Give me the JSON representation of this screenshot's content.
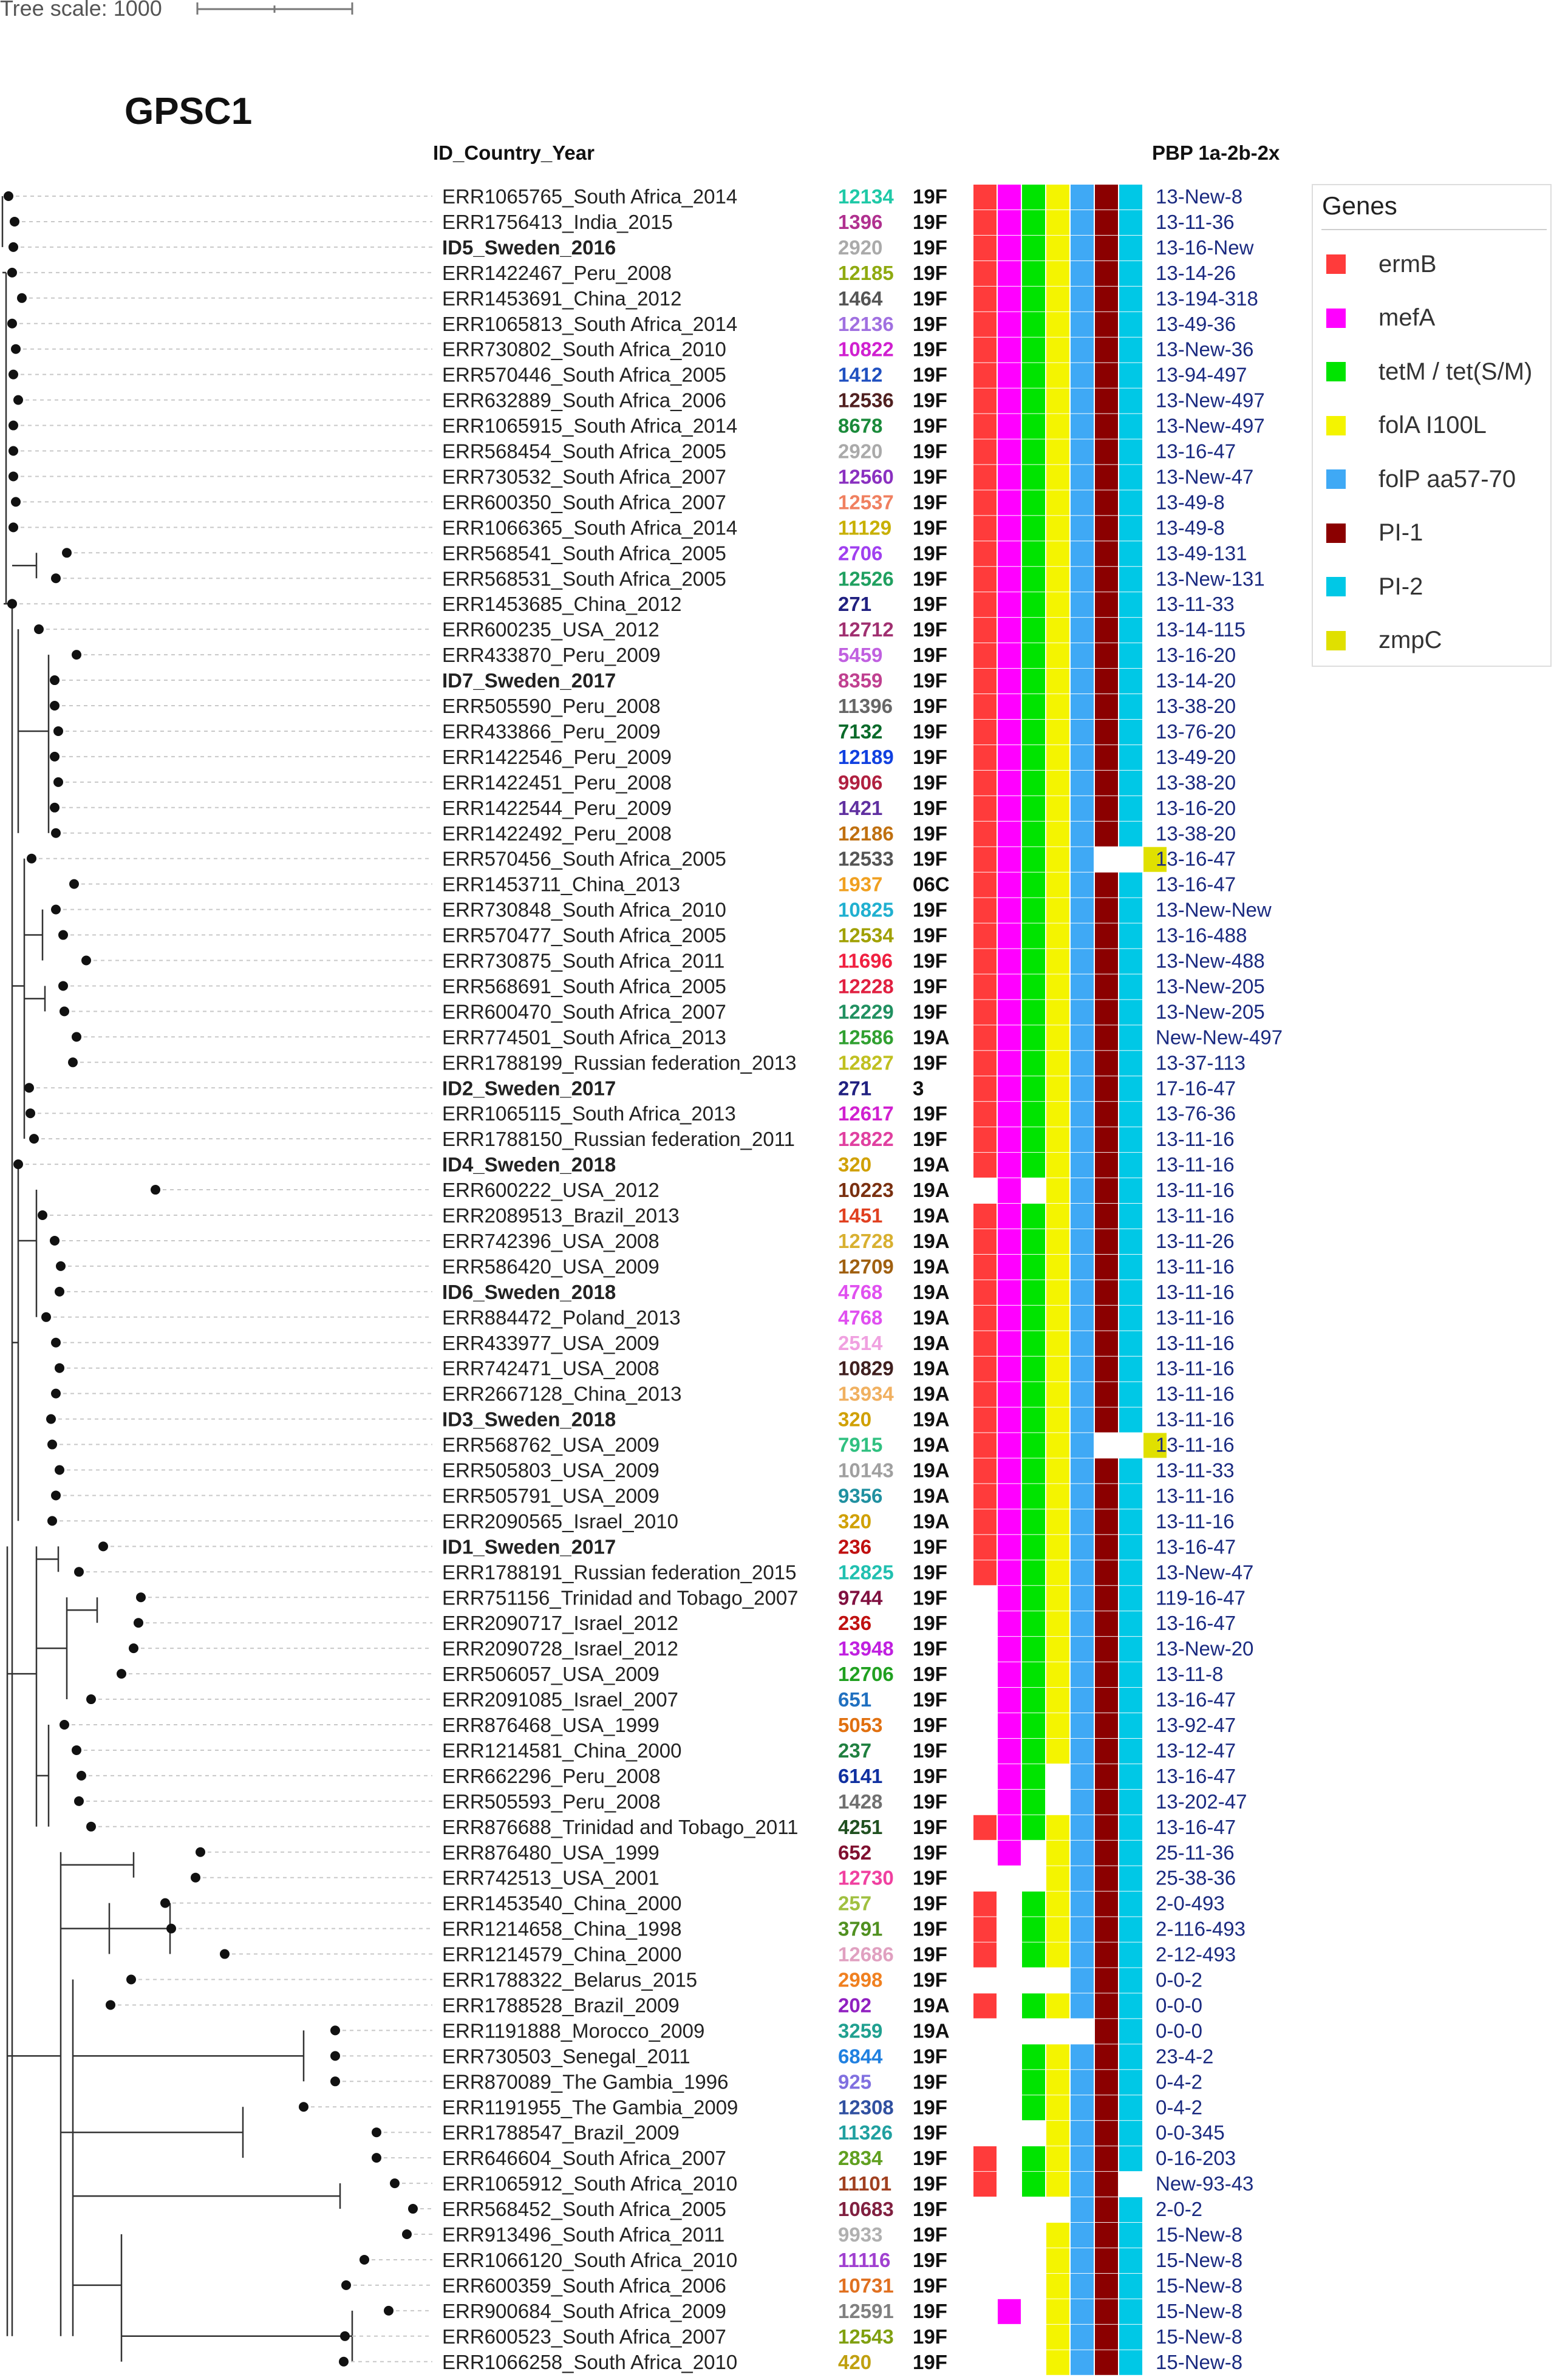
{
  "header": {
    "scale_label": "Tree scale: 1000",
    "title": "GPSC1",
    "col_id": "ID_Country_Year",
    "col_pbp": "PBP 1a-2b-2x"
  },
  "legend": {
    "title": "Genes",
    "items": [
      {
        "label": "ermB",
        "color": "#ff3b3b"
      },
      {
        "label": "mefA",
        "color": "#ff00ff"
      },
      {
        "label": "tetM / tet(S/M)",
        "color": "#00e400"
      },
      {
        "label": "folA I100L",
        "color": "#f4f400"
      },
      {
        "label": "folP aa57-70",
        "color": "#3fa9f5"
      },
      {
        "label": "PI-1",
        "color": "#8b0000"
      },
      {
        "label": "PI-2",
        "color": "#00c8e6"
      },
      {
        "label": "zmpC",
        "color": "#e0e000"
      }
    ]
  },
  "rows": [
    {
      "id": "ERR1065765_South Africa_2014",
      "st": "12134",
      "stc": "#1fc9a7",
      "sero": "19F",
      "genes": "11111110",
      "pbp": "13-New-8"
    },
    {
      "id": "ERR1756413_India_2015",
      "st": "1396",
      "stc": "#b0308f",
      "sero": "19F",
      "genes": "11111110",
      "pbp": "13-11-36"
    },
    {
      "id": "ID5_Sweden_2016",
      "bold": true,
      "st": "2920",
      "stc": "#aaaaaa",
      "sero": "19F",
      "genes": "11111110",
      "pbp": "13-16-New"
    },
    {
      "id": "ERR1422467_Peru_2008",
      "st": "12185",
      "stc": "#8faa10",
      "sero": "19F",
      "genes": "11111110",
      "pbp": "13-14-26"
    },
    {
      "id": "ERR1453691_China_2012",
      "st": "1464",
      "stc": "#555555",
      "sero": "19F",
      "genes": "11111110",
      "pbp": "13-194-318"
    },
    {
      "id": "ERR1065813_South Africa_2014",
      "st": "12136",
      "stc": "#a070e0",
      "sero": "19F",
      "genes": "11111110",
      "pbp": "13-49-36"
    },
    {
      "id": "ERR730802_South Africa_2010",
      "st": "10822",
      "stc": "#d020d0",
      "sero": "19F",
      "genes": "11111110",
      "pbp": "13-New-36"
    },
    {
      "id": "ERR570446_South Africa_2005",
      "st": "1412",
      "stc": "#2050c0",
      "sero": "19F",
      "genes": "11111110",
      "pbp": "13-94-497"
    },
    {
      "id": "ERR632889_South Africa_2006",
      "st": "12536",
      "stc": "#502020",
      "sero": "19F",
      "genes": "11111110",
      "pbp": "13-New-497"
    },
    {
      "id": "ERR1065915_South Africa_2014",
      "st": "8678",
      "stc": "#1a8a3a",
      "sero": "19F",
      "genes": "11111110",
      "pbp": "13-New-497"
    },
    {
      "id": "ERR568454_South Africa_2005",
      "st": "2920",
      "stc": "#aaaaaa",
      "sero": "19F",
      "genes": "11111110",
      "pbp": "13-16-47"
    },
    {
      "id": "ERR730532_South Africa_2007",
      "st": "12560",
      "stc": "#8a30c0",
      "sero": "19F",
      "genes": "11111110",
      "pbp": "13-New-47"
    },
    {
      "id": "ERR600350_South Africa_2007",
      "st": "12537",
      "stc": "#f08060",
      "sero": "19F",
      "genes": "11111110",
      "pbp": "13-49-8"
    },
    {
      "id": "ERR1066365_South Africa_2014",
      "st": "11129",
      "stc": "#c8b000",
      "sero": "19F",
      "genes": "11111110",
      "pbp": "13-49-8"
    },
    {
      "id": "ERR568541_South Africa_2005",
      "st": "2706",
      "stc": "#a040f0",
      "sero": "19F",
      "genes": "11111110",
      "pbp": "13-49-131"
    },
    {
      "id": "ERR568531_South Africa_2005",
      "st": "12526",
      "stc": "#20a060",
      "sero": "19F",
      "genes": "11111110",
      "pbp": "13-New-131"
    },
    {
      "id": "ERR1453685_China_2012",
      "st": "271",
      "stc": "#202080",
      "sero": "19F",
      "genes": "11111110",
      "pbp": "13-11-33"
    },
    {
      "id": "ERR600235_USA_2012",
      "st": "12712",
      "stc": "#a03070",
      "sero": "19F",
      "genes": "11111110",
      "pbp": "13-14-115"
    },
    {
      "id": "ERR433870_Peru_2009",
      "st": "5459",
      "stc": "#c060e0",
      "sero": "19F",
      "genes": "11111110",
      "pbp": "13-16-20"
    },
    {
      "id": "ID7_Sweden_2017",
      "bold": true,
      "st": "8359",
      "stc": "#c04090",
      "sero": "19F",
      "genes": "11111110",
      "pbp": "13-14-20"
    },
    {
      "id": "ERR505590_Peru_2008",
      "st": "11396",
      "stc": "#666666",
      "sero": "19F",
      "genes": "11111110",
      "pbp": "13-38-20"
    },
    {
      "id": "ERR433866_Peru_2009",
      "st": "7132",
      "stc": "#0a6a2a",
      "sero": "19F",
      "genes": "11111110",
      "pbp": "13-76-20"
    },
    {
      "id": "ERR1422546_Peru_2009",
      "st": "12189",
      "stc": "#1040e0",
      "sero": "19F",
      "genes": "11111110",
      "pbp": "13-49-20"
    },
    {
      "id": "ERR1422451_Peru_2008",
      "st": "9906",
      "stc": "#b02040",
      "sero": "19F",
      "genes": "11111110",
      "pbp": "13-38-20"
    },
    {
      "id": "ERR1422544_Peru_2009",
      "st": "1421",
      "stc": "#6030a0",
      "sero": "19F",
      "genes": "11111110",
      "pbp": "13-16-20"
    },
    {
      "id": "ERR1422492_Peru_2008",
      "st": "12186",
      "stc": "#c07010",
      "sero": "19F",
      "genes": "11111110",
      "pbp": "13-38-20"
    },
    {
      "id": "ERR570456_South Africa_2005",
      "st": "12533",
      "stc": "#555555",
      "sero": "19F",
      "genes": "11111001",
      "pbp": "13-16-47"
    },
    {
      "id": "ERR1453711_China_2013",
      "st": "1937",
      "stc": "#f0a020",
      "sero": "06C",
      "genes": "11111110",
      "pbp": "13-16-47"
    },
    {
      "id": "ERR730848_South Africa_2010",
      "st": "10825",
      "stc": "#20b0d0",
      "sero": "19F",
      "genes": "11111110",
      "pbp": "13-New-New"
    },
    {
      "id": "ERR570477_South Africa_2005",
      "st": "12534",
      "stc": "#a0a000",
      "sero": "19F",
      "genes": "11111110",
      "pbp": "13-16-488"
    },
    {
      "id": "ERR730875_South Africa_2011",
      "st": "11696",
      "stc": "#f02040",
      "sero": "19F",
      "genes": "11111110",
      "pbp": "13-New-488"
    },
    {
      "id": "ERR568691_South Africa_2005",
      "st": "12228",
      "stc": "#e02040",
      "sero": "19F",
      "genes": "11111110",
      "pbp": "13-New-205"
    },
    {
      "id": "ERR600470_South Africa_2007",
      "st": "12229",
      "stc": "#209060",
      "sero": "19F",
      "genes": "11111110",
      "pbp": "13-New-205"
    },
    {
      "id": "ERR774501_South Africa_2013",
      "st": "12586",
      "stc": "#30a030",
      "sero": "19A",
      "genes": "11111110",
      "pbp": "New-New-497"
    },
    {
      "id": "ERR1788199_Russian federation_2013",
      "st": "12827",
      "stc": "#c0c020",
      "sero": "19F",
      "genes": "11111110",
      "pbp": "13-37-113"
    },
    {
      "id": "ID2_Sweden_2017",
      "bold": true,
      "st": "271",
      "stc": "#202080",
      "sero": "3",
      "genes": "11111110",
      "pbp": "17-16-47"
    },
    {
      "id": "ERR1065115_South Africa_2013",
      "st": "12617",
      "stc": "#d020d0",
      "sero": "19F",
      "genes": "11111110",
      "pbp": "13-76-36"
    },
    {
      "id": "ERR1788150_Russian federation_2011",
      "st": "12822",
      "stc": "#e040a0",
      "sero": "19F",
      "genes": "11111110",
      "pbp": "13-11-16"
    },
    {
      "id": "ID4_Sweden_2018",
      "bold": true,
      "st": "320",
      "stc": "#d0a000",
      "sero": "19A",
      "genes": "11111110",
      "pbp": "13-11-16"
    },
    {
      "id": "ERR600222_USA_2012",
      "st": "10223",
      "stc": "#7a3010",
      "sero": "19A",
      "genes": "01011110",
      "pbp": "13-11-16"
    },
    {
      "id": "ERR2089513_Brazil_2013",
      "st": "1451",
      "stc": "#e04020",
      "sero": "19A",
      "genes": "11111110",
      "pbp": "13-11-16"
    },
    {
      "id": "ERR742396_USA_2008",
      "st": "12728",
      "stc": "#d8b030",
      "sero": "19A",
      "genes": "11111110",
      "pbp": "13-11-26"
    },
    {
      "id": "ERR586420_USA_2009",
      "st": "12709",
      "stc": "#a06010",
      "sero": "19A",
      "genes": "11111110",
      "pbp": "13-11-16"
    },
    {
      "id": "ID6_Sweden_2018",
      "bold": true,
      "st": "4768",
      "stc": "#e050f0",
      "sero": "19A",
      "genes": "11111110",
      "pbp": "13-11-16"
    },
    {
      "id": "ERR884472_Poland_2013",
      "st": "4768",
      "stc": "#e050f0",
      "sero": "19A",
      "genes": "11111110",
      "pbp": "13-11-16"
    },
    {
      "id": "ERR433977_USA_2009",
      "st": "2514",
      "stc": "#f0a0e0",
      "sero": "19A",
      "genes": "11111110",
      "pbp": "13-11-16"
    },
    {
      "id": "ERR742471_USA_2008",
      "st": "10829",
      "stc": "#402020",
      "sero": "19A",
      "genes": "11111110",
      "pbp": "13-11-16"
    },
    {
      "id": "ERR2667128_China_2013",
      "st": "13934",
      "stc": "#f0b060",
      "sero": "19A",
      "genes": "11111110",
      "pbp": "13-11-16"
    },
    {
      "id": "ID3_Sweden_2018",
      "bold": true,
      "st": "320",
      "stc": "#d0a000",
      "sero": "19A",
      "genes": "11111110",
      "pbp": "13-11-16"
    },
    {
      "id": "ERR568762_USA_2009",
      "st": "7915",
      "stc": "#30c080",
      "sero": "19A",
      "genes": "11111001",
      "pbp": "13-11-16"
    },
    {
      "id": "ERR505803_USA_2009",
      "st": "10143",
      "stc": "#a0a0a0",
      "sero": "19A",
      "genes": "11111110",
      "pbp": "13-11-33"
    },
    {
      "id": "ERR505791_USA_2009",
      "st": "9356",
      "stc": "#2090a0",
      "sero": "19A",
      "genes": "11111110",
      "pbp": "13-11-16"
    },
    {
      "id": "ERR2090565_Israel_2010",
      "st": "320",
      "stc": "#d0a000",
      "sero": "19A",
      "genes": "11111110",
      "pbp": "13-11-16"
    },
    {
      "id": "ID1_Sweden_2017",
      "bold": true,
      "st": "236",
      "stc": "#c01010",
      "sero": "19F",
      "genes": "11111110",
      "pbp": "13-16-47"
    },
    {
      "id": "ERR1788191_Russian federation_2015",
      "st": "12825",
      "stc": "#20c0b0",
      "sero": "19F",
      "genes": "11111110",
      "pbp": "13-New-47"
    },
    {
      "id": "ERR751156_Trinidad and Tobago_2007",
      "st": "9744",
      "stc": "#801040",
      "sero": "19F",
      "genes": "01111110",
      "pbp": "119-16-47"
    },
    {
      "id": "ERR2090717_Israel_2012",
      "st": "236",
      "stc": "#c01010",
      "sero": "19F",
      "genes": "01111110",
      "pbp": "13-16-47"
    },
    {
      "id": "ERR2090728_Israel_2012",
      "st": "13948",
      "stc": "#c020e0",
      "sero": "19F",
      "genes": "01111110",
      "pbp": "13-New-20"
    },
    {
      "id": "ERR506057_USA_2009",
      "st": "12706",
      "stc": "#20a020",
      "sero": "19F",
      "genes": "01111110",
      "pbp": "13-11-8"
    },
    {
      "id": "ERR2091085_Israel_2007",
      "st": "651",
      "stc": "#2070c0",
      "sero": "19F",
      "genes": "01111110",
      "pbp": "13-16-47"
    },
    {
      "id": "ERR876468_USA_1999",
      "st": "5053",
      "stc": "#e07010",
      "sero": "19F",
      "genes": "01111110",
      "pbp": "13-92-47"
    },
    {
      "id": "ERR1214581_China_2000",
      "st": "237",
      "stc": "#208040",
      "sero": "19F",
      "genes": "01111110",
      "pbp": "13-12-47"
    },
    {
      "id": "ERR662296_Peru_2008",
      "st": "6141",
      "stc": "#1030a0",
      "sero": "19F",
      "genes": "01101110",
      "pbp": "13-16-47"
    },
    {
      "id": "ERR505593_Peru_2008",
      "st": "1428",
      "stc": "#707070",
      "sero": "19F",
      "genes": "01101110",
      "pbp": "13-202-47"
    },
    {
      "id": "ERR876688_Trinidad and Tobago_2011",
      "st": "4251",
      "stc": "#205020",
      "sero": "19F",
      "genes": "11111110",
      "pbp": "13-16-47"
    },
    {
      "id": "ERR876480_USA_1999",
      "st": "652",
      "stc": "#801030",
      "sero": "19F",
      "genes": "01011110",
      "pbp": "25-11-36"
    },
    {
      "id": "ERR742513_USA_2001",
      "st": "12730",
      "stc": "#f040a0",
      "sero": "19F",
      "genes": "00011110",
      "pbp": "25-38-36"
    },
    {
      "id": "ERR1453540_China_2000",
      "st": "257",
      "stc": "#a0c040",
      "sero": "19F",
      "genes": "10111110",
      "pbp": "2-0-493"
    },
    {
      "id": "ERR1214658_China_1998",
      "st": "3791",
      "stc": "#509020",
      "sero": "19F",
      "genes": "10111110",
      "pbp": "2-116-493"
    },
    {
      "id": "ERR1214579_China_2000",
      "st": "12686",
      "stc": "#e0a0c0",
      "sero": "19F",
      "genes": "10111110",
      "pbp": "2-12-493"
    },
    {
      "id": "ERR1788322_Belarus_2015",
      "st": "2998",
      "stc": "#f08020",
      "sero": "19F",
      "genes": "00001110",
      "pbp": "0-0-2"
    },
    {
      "id": "ERR1788528_Brazil_2009",
      "st": "202",
      "stc": "#9020c0",
      "sero": "19A",
      "genes": "10111110",
      "pbp": "0-0-0"
    },
    {
      "id": "ERR1191888_Morocco_2009",
      "st": "3259",
      "stc": "#20a090",
      "sero": "19A",
      "genes": "00000110",
      "pbp": "0-0-0"
    },
    {
      "id": "ERR730503_Senegal_2011",
      "st": "6844",
      "stc": "#2080e0",
      "sero": "19F",
      "genes": "00111110",
      "pbp": "23-4-2"
    },
    {
      "id": "ERR870089_The Gambia_1996",
      "st": "925",
      "stc": "#8070e0",
      "sero": "19F",
      "genes": "00111110",
      "pbp": "0-4-2"
    },
    {
      "id": "ERR1191955_The Gambia_2009",
      "st": "12308",
      "stc": "#3050a0",
      "sero": "19F",
      "genes": "00111110",
      "pbp": "0-4-2"
    },
    {
      "id": "ERR1788547_Brazil_2009",
      "st": "11326",
      "stc": "#20a0a0",
      "sero": "19F",
      "genes": "00011110",
      "pbp": "0-0-345"
    },
    {
      "id": "ERR646604_South Africa_2007",
      "st": "2834",
      "stc": "#60a020",
      "sero": "19F",
      "genes": "10111110",
      "pbp": "0-16-203"
    },
    {
      "id": "ERR1065912_South Africa_2010",
      "st": "11101",
      "stc": "#a04020",
      "sero": "19F",
      "genes": "10111100",
      "pbp": "New-93-43"
    },
    {
      "id": "ERR568452_South Africa_2005",
      "st": "10683",
      "stc": "#802040",
      "sero": "19F",
      "genes": "00001110",
      "pbp": "2-0-2"
    },
    {
      "id": "ERR913496_South Africa_2011",
      "st": "9933",
      "stc": "#b0b0b0",
      "sero": "19F",
      "genes": "00011110",
      "pbp": "15-New-8"
    },
    {
      "id": "ERR1066120_South Africa_2010",
      "st": "11116",
      "stc": "#a040d0",
      "sero": "19F",
      "genes": "00011110",
      "pbp": "15-New-8"
    },
    {
      "id": "ERR600359_South Africa_2006",
      "st": "10731",
      "stc": "#e07020",
      "sero": "19F",
      "genes": "00011110",
      "pbp": "15-New-8"
    },
    {
      "id": "ERR900684_South Africa_2009",
      "st": "12591",
      "stc": "#808080",
      "sero": "19F",
      "genes": "01011110",
      "pbp": "15-New-8"
    },
    {
      "id": "ERR600523_South Africa_2007",
      "st": "12543",
      "stc": "#80a010",
      "sero": "19F",
      "genes": "00011110",
      "pbp": "15-New-8"
    },
    {
      "id": "ERR1066258_South Africa_2010",
      "st": "420",
      "stc": "#c0a010",
      "sero": "19F",
      "genes": "00011110",
      "pbp": "15-New-8"
    }
  ]
}
